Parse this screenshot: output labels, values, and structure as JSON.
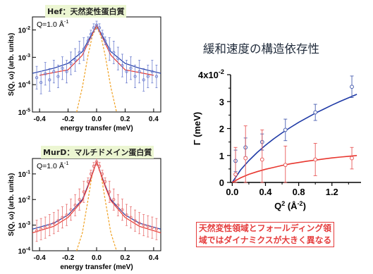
{
  "slide": {
    "title": "緩和速度の構造依存性",
    "callout_lines": [
      "天然変性領域とフォールディング領",
      "域ではダイナミクスが大きく異なる"
    ]
  },
  "panels": {
    "hef": {
      "title": "Hef：天然変性蛋白質",
      "annotation": "Q=1.0 Å",
      "annotation_sup": "-1",
      "xlabel": "energy transfer (meV)",
      "ylabel": "S(Q, ω) (arb. units)",
      "yticks": [
        {
          "base": "10",
          "exp": "-2"
        },
        {
          "base": "10",
          "exp": "-3"
        },
        {
          "base": "10",
          "exp": "-4"
        },
        {
          "base": "10",
          "exp": "-5"
        }
      ],
      "xticks": [
        "-0.4",
        "-0.2",
        "0.0",
        "0.2",
        "0.4"
      ]
    },
    "murd": {
      "title": "MurD：マルチドメイン蛋白質",
      "annotation": "Q=1.0 Å",
      "annotation_sup": "-1",
      "xlabel": "energy transfer (meV)",
      "ylabel": "S(Q, ω) (arb. units)",
      "yticks": [
        {
          "base": "10",
          "exp": "-1"
        },
        {
          "base": "10",
          "exp": "-2"
        },
        {
          "base": "10",
          "exp": "-3"
        },
        {
          "base": "10",
          "exp": "-4"
        }
      ],
      "xticks": [
        "-0.4",
        "-0.2",
        "0.0",
        "0.2",
        "0.4"
      ]
    },
    "gamma": {
      "ylabel": "Γ (meV)",
      "xlabel_base": "Q",
      "xlabel_sup": "2",
      "xlabel_unit": " (Å",
      "xlabel_unit_sup": "-2",
      "xlabel_end": ")",
      "ytick_top": {
        "base": "4x10",
        "exp": "-2"
      },
      "yticks": [
        "3",
        "2",
        "1",
        "0"
      ],
      "xticks": [
        "0.0",
        "0.4",
        "0.8",
        "1.2"
      ]
    }
  },
  "colors": {
    "blue": "#1f3aa6",
    "red": "#e8372f",
    "orange_dashed": "#f0a020",
    "hef_points": "#6e7fd0",
    "murd_points": "#e87070",
    "gamma_blue_points": "#4a5fb0",
    "gamma_red_points": "#e85a5a",
    "title_bg": "#ecf6d2"
  },
  "chart_data": [
    {
      "id": "hef",
      "type": "scatter",
      "title": "",
      "xlabel": "energy transfer (meV)",
      "ylabel": "S(Q, ω) (arb. units)",
      "xlim": [
        -0.45,
        0.45
      ],
      "ylim": [
        1e-05,
        0.03
      ],
      "yscale": "log",
      "series": [
        {
          "style": "points-with-error-bars",
          "x": [
            -0.42,
            -0.39,
            -0.36,
            -0.33,
            -0.3,
            -0.27,
            -0.24,
            -0.21,
            -0.18,
            -0.15,
            -0.12,
            -0.09,
            -0.06,
            -0.04,
            -0.02,
            0.0,
            0.02,
            0.04,
            0.06,
            0.09,
            0.12,
            0.15,
            0.18,
            0.21,
            0.24,
            0.27,
            0.3,
            0.33,
            0.36,
            0.39,
            0.42
          ],
          "y": [
            0.00018,
            0.00012,
            0.00025,
            0.00015,
            0.0003,
            0.0002,
            0.0004,
            0.0003,
            0.0006,
            0.0008,
            0.0015,
            0.002,
            0.004,
            0.007,
            0.012,
            0.015,
            0.012,
            0.007,
            0.004,
            0.002,
            0.0015,
            0.0009,
            0.0005,
            0.0003,
            0.0004,
            0.0002,
            0.0003,
            0.00015,
            0.0002,
            0.0003,
            0.0002
          ]
        },
        {
          "style": "line",
          "x": [
            -0.45,
            -0.3,
            -0.2,
            -0.1,
            -0.05,
            0,
            0.05,
            0.1,
            0.2,
            0.3,
            0.45
          ],
          "y": [
            0.00026,
            0.0004,
            0.0006,
            0.0016,
            0.005,
            0.015,
            0.005,
            0.0016,
            0.0006,
            0.0004,
            0.00026
          ]
        },
        {
          "style": "line",
          "x": [
            -0.4,
            -0.2,
            -0.1,
            0,
            0.1,
            0.2,
            0.4
          ],
          "y": [
            0.00022,
            0.00035,
            0.0012,
            0.015,
            0.0012,
            0.00035,
            0.00022
          ]
        },
        {
          "style": "dashed",
          "x": [
            -0.14,
            -0.1,
            -0.06,
            -0.03,
            0,
            0.03,
            0.06,
            0.1,
            0.14
          ],
          "y": [
            1e-05,
            8e-05,
            0.0012,
            0.006,
            0.013,
            0.006,
            0.0012,
            8e-05,
            1e-05
          ]
        }
      ]
    },
    {
      "id": "murd",
      "type": "scatter",
      "title": "",
      "xlabel": "energy transfer (meV)",
      "ylabel": "S(Q, ω) (arb. units)",
      "xlim": [
        -0.45,
        0.45
      ],
      "ylim": [
        0.0001,
        0.4
      ],
      "yscale": "log",
      "series": [
        {
          "style": "points-with-error-bars",
          "x": [
            -0.42,
            -0.39,
            -0.36,
            -0.33,
            -0.3,
            -0.27,
            -0.24,
            -0.21,
            -0.18,
            -0.15,
            -0.12,
            -0.09,
            -0.06,
            -0.04,
            -0.02,
            0.0,
            0.02,
            0.04,
            0.06,
            0.09,
            0.12,
            0.15,
            0.18,
            0.21,
            0.24,
            0.27,
            0.3,
            0.33,
            0.36,
            0.39,
            0.42
          ],
          "y": [
            0.0006,
            0.0007,
            0.0008,
            0.001,
            0.0012,
            0.0015,
            0.002,
            0.0025,
            0.004,
            0.006,
            0.01,
            0.02,
            0.05,
            0.1,
            0.2,
            0.3,
            0.2,
            0.1,
            0.05,
            0.02,
            0.01,
            0.006,
            0.004,
            0.0025,
            0.002,
            0.0015,
            0.0012,
            0.001,
            0.0009,
            0.0008,
            0.0007
          ]
        },
        {
          "style": "line",
          "x": [
            -0.45,
            -0.3,
            -0.2,
            -0.1,
            -0.05,
            0,
            0.05,
            0.1,
            0.2,
            0.3,
            0.45
          ],
          "y": [
            0.0007,
            0.0012,
            0.0025,
            0.01,
            0.05,
            0.3,
            0.05,
            0.01,
            0.0025,
            0.0012,
            0.0007
          ]
        },
        {
          "style": "line",
          "x": [
            -0.45,
            -0.3,
            -0.2,
            -0.1,
            -0.05,
            0,
            0.05,
            0.1,
            0.2,
            0.3,
            0.45
          ],
          "y": [
            0.0005,
            0.0009,
            0.002,
            0.009,
            0.045,
            0.3,
            0.045,
            0.009,
            0.002,
            0.0009,
            0.0005
          ]
        },
        {
          "style": "dashed",
          "x": [
            -0.14,
            -0.1,
            -0.06,
            -0.03,
            0,
            0.03,
            0.06,
            0.1,
            0.14
          ],
          "y": [
            0.0001,
            0.0005,
            0.01,
            0.1,
            0.3,
            0.1,
            0.01,
            0.0005,
            0.0001
          ]
        }
      ]
    },
    {
      "id": "gamma",
      "type": "scatter",
      "title": "",
      "xlabel": "Q² (Å⁻²)",
      "ylabel": "Γ (meV)",
      "xlim": [
        -0.02,
        1.55
      ],
      "ylim": [
        0,
        0.04
      ],
      "series": [
        {
          "color": "blue",
          "style": "points-with-error-bars",
          "x": [
            0.04,
            0.16,
            0.36,
            0.64,
            1.0,
            1.44
          ],
          "y": [
            0.008,
            0.013,
            0.015,
            0.0195,
            0.026,
            0.0355
          ],
          "err": [
            0.004,
            0.0035,
            0.003,
            0.004,
            0.003,
            0.004
          ]
        },
        {
          "color": "red",
          "style": "points-with-error-bars",
          "x": [
            0.04,
            0.16,
            0.36,
            0.64,
            1.0,
            1.44
          ],
          "y": [
            0.003,
            0.009,
            0.0085,
            0.0065,
            0.0085,
            0.009
          ],
          "err": [
            0.01,
            0.012,
            0.011,
            0.007,
            0.006,
            0.004
          ]
        },
        {
          "color": "blue",
          "style": "line",
          "x": [
            0,
            0.1,
            0.2,
            0.3,
            0.4,
            0.5,
            0.6,
            0.7,
            0.8,
            0.9,
            1.0,
            1.1,
            1.2,
            1.3,
            1.4,
            1.5
          ],
          "y": [
            0,
            0.0046,
            0.0081,
            0.0111,
            0.0138,
            0.0162,
            0.0184,
            0.0204,
            0.0223,
            0.024,
            0.0257,
            0.0272,
            0.0287,
            0.0301,
            0.0314,
            0.0327
          ]
        },
        {
          "color": "red",
          "style": "line",
          "x": [
            0,
            0.1,
            0.2,
            0.3,
            0.4,
            0.5,
            0.6,
            0.7,
            0.8,
            0.9,
            1.0,
            1.1,
            1.2,
            1.3,
            1.4,
            1.5
          ],
          "y": [
            0,
            0.0017,
            0.003,
            0.004,
            0.0049,
            0.0056,
            0.0063,
            0.0069,
            0.0074,
            0.0079,
            0.0083,
            0.0087,
            0.0091,
            0.0094,
            0.0097,
            0.01
          ]
        }
      ]
    }
  ]
}
